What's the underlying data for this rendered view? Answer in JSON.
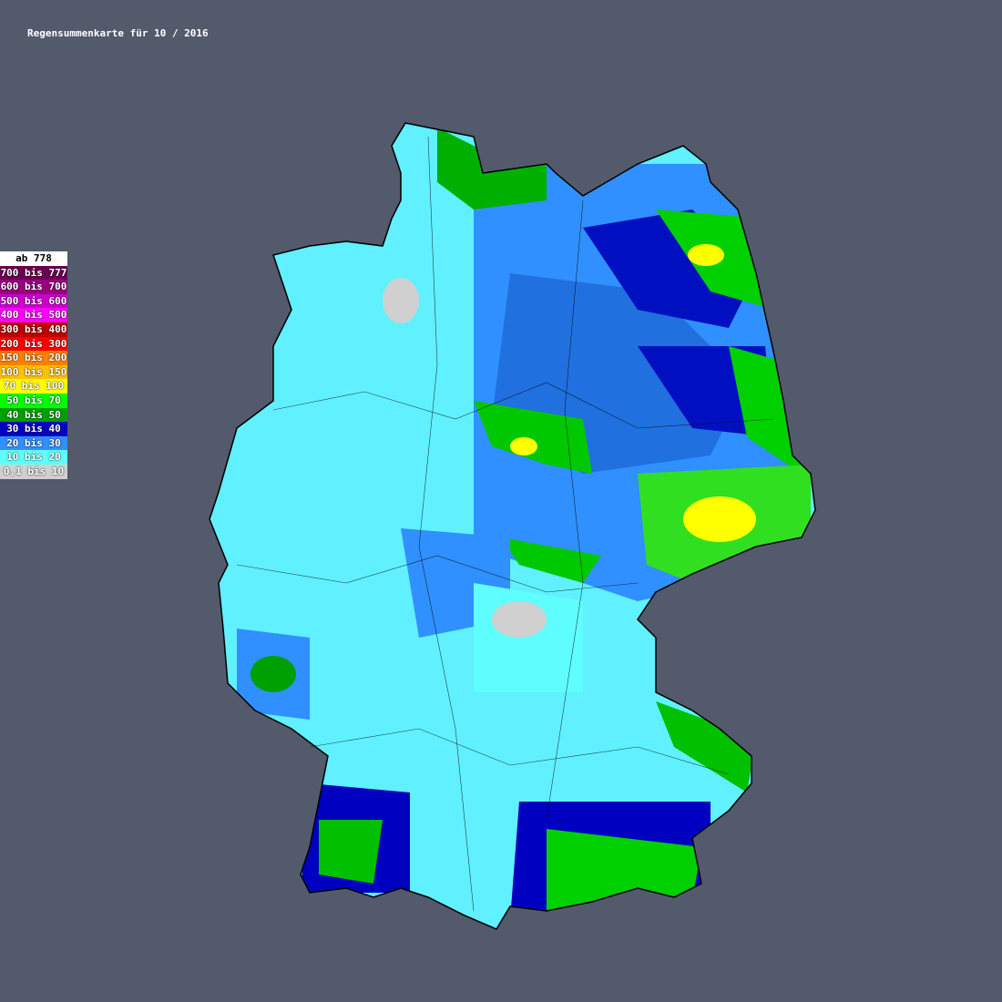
{
  "title": "Regensummenkarte für 10 / 2016",
  "legend": [
    {
      "label": "ab 778",
      "color": "#ffffff"
    },
    {
      "label": "700 bis 777",
      "color": "#6a0050"
    },
    {
      "label": "600 bis 700",
      "color": "#990080"
    },
    {
      "label": "500 bis 600",
      "color": "#cc00cc"
    },
    {
      "label": "400 bis 500",
      "color": "#ff00ff"
    },
    {
      "label": "300 bis 400",
      "color": "#c00000"
    },
    {
      "label": "200 bis 300",
      "color": "#ff0000"
    },
    {
      "label": "150 bis 200",
      "color": "#ff8000"
    },
    {
      "label": "100 bis 150",
      "color": "#ffc000"
    },
    {
      "label": "70 bis 100",
      "color": "#ffff00"
    },
    {
      "label": "50 bis 70",
      "color": "#00ff00"
    },
    {
      "label": "40 bis 50",
      "color": "#00a000"
    },
    {
      "label": "30 bis 40",
      "color": "#0000c0"
    },
    {
      "label": "20 bis 30",
      "color": "#3090ff"
    },
    {
      "label": "10 bis 20",
      "color": "#60ffff"
    },
    {
      "label": "0,1 bis 10",
      "color": "#d0d0d0"
    }
  ]
}
